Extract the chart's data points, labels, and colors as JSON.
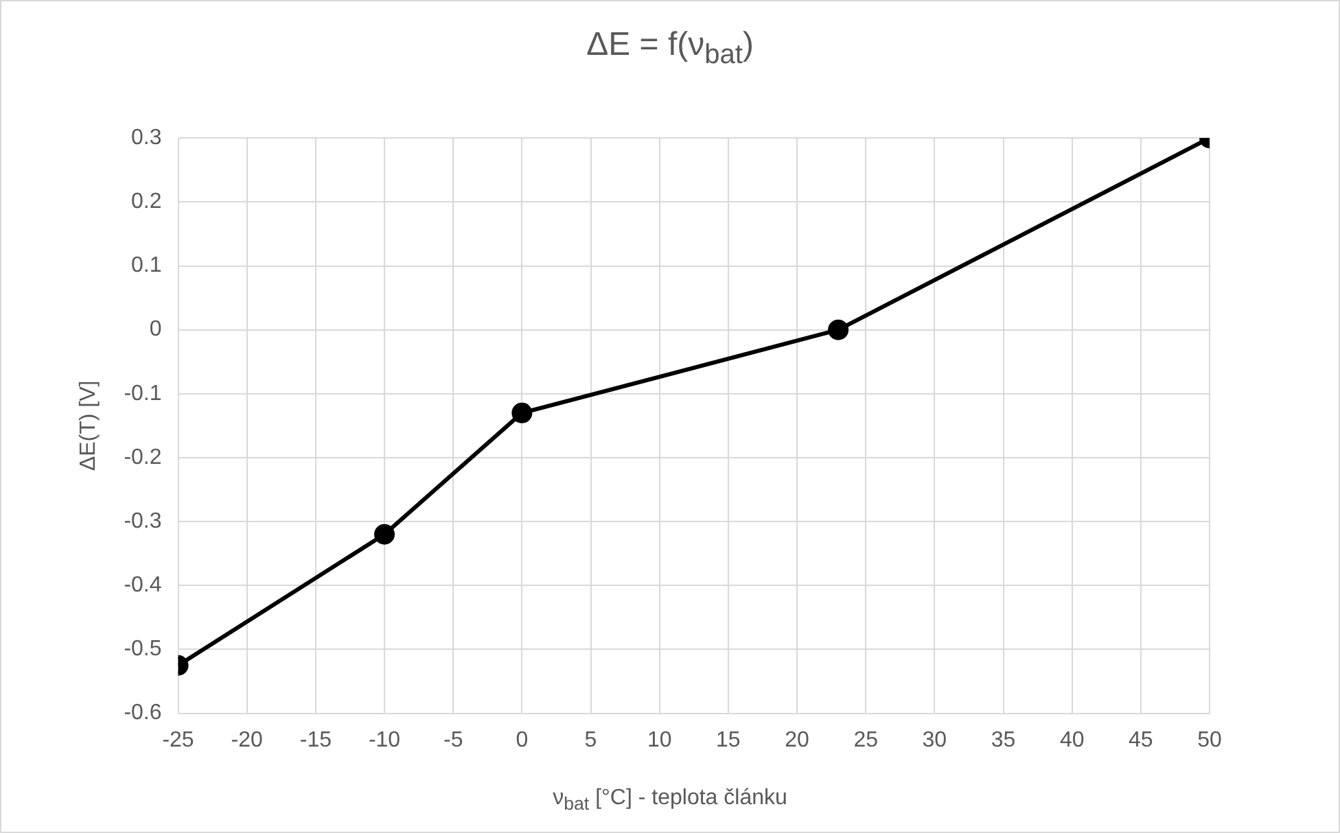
{
  "chart_data": {
    "type": "line",
    "title": "ΔE = f(ν$_{bat}$)",
    "xlabel": "ν$_{bat}$ [°C] - teplota článku",
    "ylabel": "ΔE(T) [V]",
    "x": [
      -25,
      -10,
      0,
      23,
      50
    ],
    "series": [
      {
        "color": "#000000",
        "values": [
          -0.525,
          -0.32,
          -0.13,
          0,
          0.3
        ]
      }
    ],
    "xlim": [
      -25,
      50
    ],
    "xticks": [
      -25,
      -20,
      -15,
      -10,
      -5,
      0,
      5,
      10,
      15,
      20,
      25,
      30,
      35,
      40,
      45,
      50
    ],
    "ylim": [
      -0.6,
      0.3
    ],
    "yticks": [
      -0.6,
      -0.5,
      -0.4,
      -0.3,
      -0.2,
      -0.1,
      0,
      0.1,
      0.2,
      0.3
    ],
    "grid": true,
    "legend": false,
    "marker": "circle",
    "line_style": "solid"
  }
}
